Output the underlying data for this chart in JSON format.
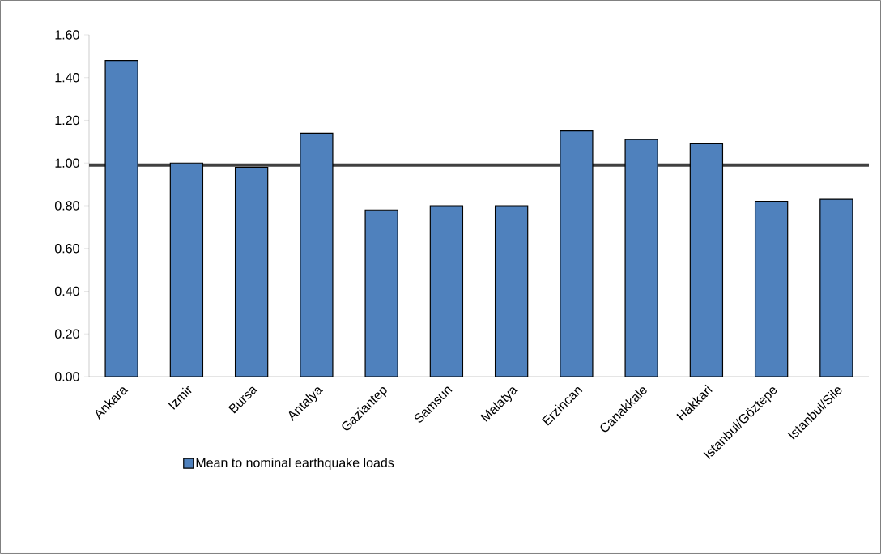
{
  "chart_data": {
    "type": "bar",
    "categories": [
      "Ankara",
      "Izmir",
      "Bursa",
      "Antalya",
      "Gaziantep",
      "Samsun",
      "Malatya",
      "Erzincan",
      "Canakkale",
      "Hakkari",
      "Istanbul/Göztepe",
      "Istanbul/Sile"
    ],
    "series": [
      {
        "name": "Mean to nominal earthquake loads",
        "color": "#4f81bd",
        "values": [
          1.48,
          1.0,
          0.98,
          1.14,
          0.78,
          0.8,
          0.8,
          1.15,
          1.11,
          1.09,
          0.82,
          0.83
        ]
      }
    ],
    "ylim": [
      0,
      1.6
    ],
    "yticks": [
      {
        "value": 0,
        "label": "0.00"
      },
      {
        "value": 0.2,
        "label": "0.20"
      },
      {
        "value": 0.4,
        "label": "0.40"
      },
      {
        "value": 0.6,
        "label": "0.60"
      },
      {
        "value": 0.8,
        "label": "0.80"
      },
      {
        "value": 1.0,
        "label": "1.00"
      },
      {
        "value": 1.2,
        "label": "1.20"
      },
      {
        "value": 1.4,
        "label": "1.40"
      },
      {
        "value": 1.6,
        "label": "1.60"
      }
    ],
    "ref_lines": [
      {
        "axis": "y",
        "value": 0.99,
        "color": "#404040"
      }
    ],
    "grid": false,
    "legend": "bottom"
  }
}
